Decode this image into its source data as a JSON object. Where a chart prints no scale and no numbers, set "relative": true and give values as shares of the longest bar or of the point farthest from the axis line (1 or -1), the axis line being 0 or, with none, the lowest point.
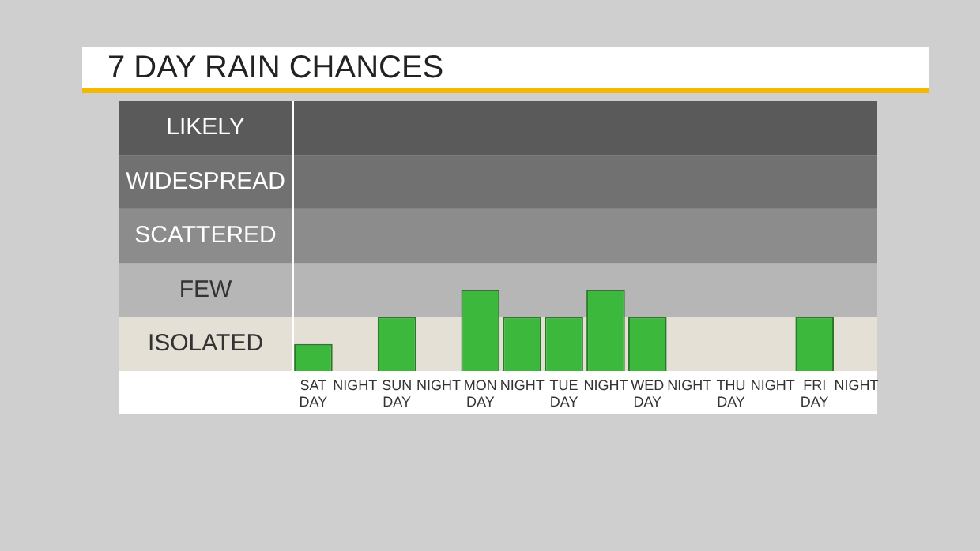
{
  "chart_data": {
    "type": "bar",
    "title": "7 DAY RAIN CHANCES",
    "categories": [
      "SAT DAY",
      "NIGHT",
      "SUN DAY",
      "NIGHT",
      "MON DAY",
      "NIGHT",
      "TUE DAY",
      "NIGHT",
      "WED DAY",
      "NIGHT",
      "THU DAY",
      "NIGHT",
      "FRI DAY",
      "NIGHT"
    ],
    "values": [
      0.333,
      null,
      0.667,
      null,
      1,
      0.667,
      0.667,
      1,
      0.667,
      null,
      null,
      null,
      0.667,
      null
    ],
    "relative": true,
    "color": "#3cb83c",
    "bands": [
      {
        "axis": "y",
        "from": 0,
        "to": 0.667,
        "label": "ISOLATED",
        "color": "#e4e0d6"
      },
      {
        "axis": "y",
        "from": 0.667,
        "to": 1.333,
        "label": "FEW",
        "color": "#b6b6b6"
      },
      {
        "axis": "y",
        "from": 1.333,
        "to": 2,
        "label": "SCATTERED",
        "color": "#8c8c8c"
      },
      {
        "axis": "y",
        "from": 2,
        "to": 2.667,
        "label": "WIDESPREAD",
        "color": "#717171"
      },
      {
        "axis": "y",
        "from": 2.667,
        "to": 3.333,
        "label": "LIKELY",
        "color": "#5a5a5a"
      }
    ],
    "grid": false,
    "legend": false
  }
}
